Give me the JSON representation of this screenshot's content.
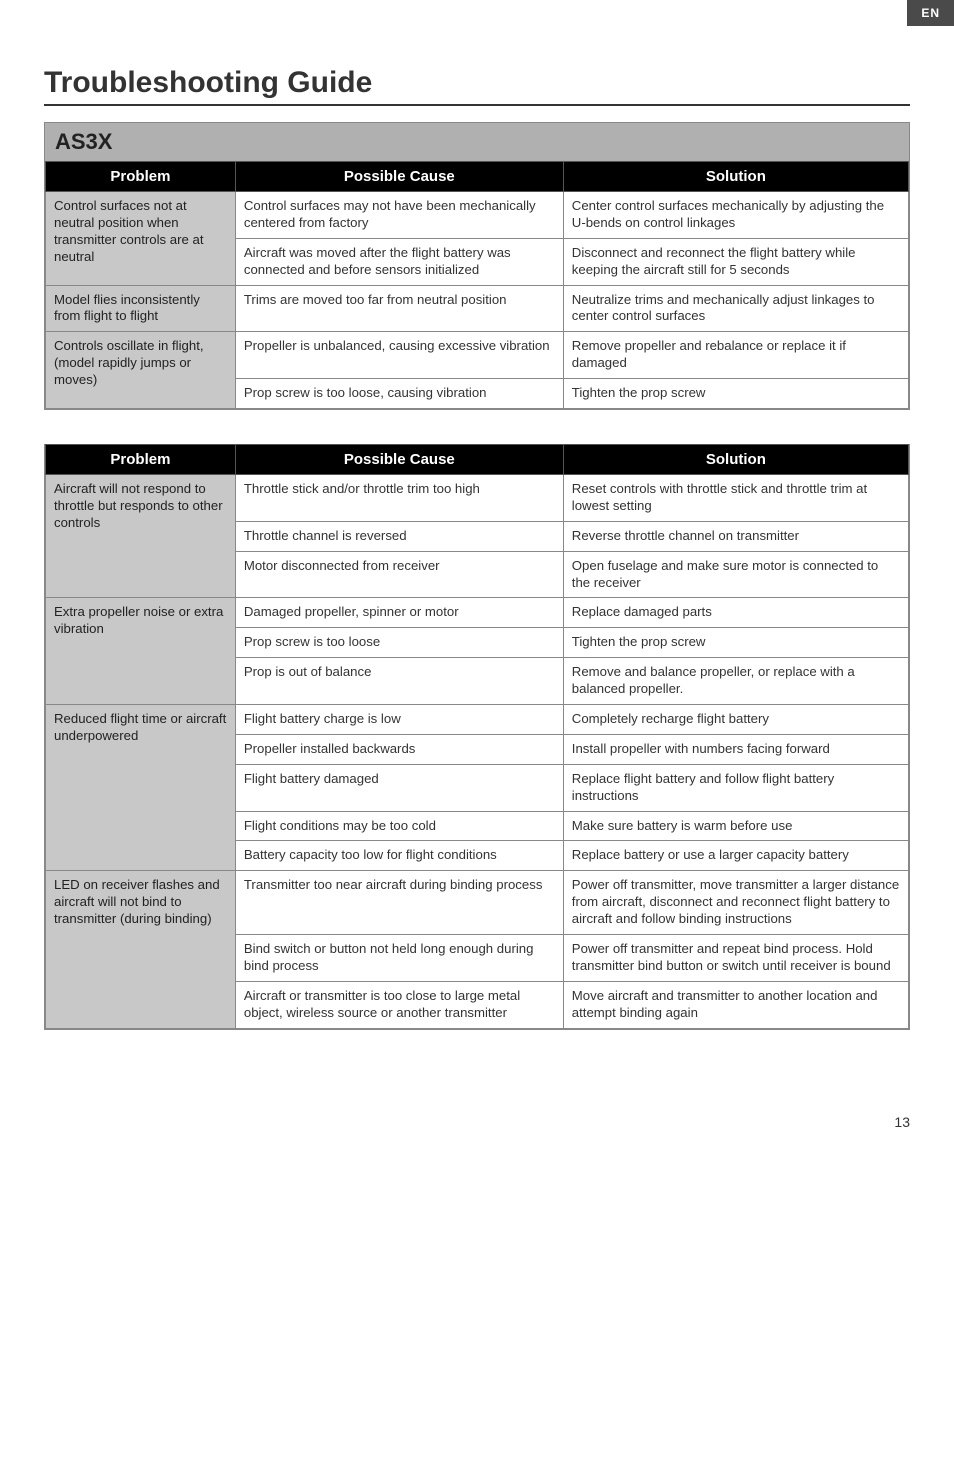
{
  "lang_badge": "EN",
  "page_title": "Troubleshooting Guide",
  "section1_label": "AS3X",
  "headers": {
    "problem": "Problem",
    "cause": "Possible Cause",
    "solution": "Solution"
  },
  "t1": {
    "r0_problem": "Control surfaces not at neutral position when transmitter controls are at neutral",
    "r0_cause": "Control surfaces may not have been mechanically centered from factory",
    "r0_solution": "Center control surfaces mechanically by adjusting the U-bends on control linkages",
    "r1_cause": "Aircraft was moved after the flight battery was connected and before sensors initialized",
    "r1_solution": "Disconnect and reconnect the flight battery while keeping the aircraft still for 5 seconds",
    "r2_problem": "Model flies inconsistently from flight to flight",
    "r2_cause": "Trims are moved too far from neutral position",
    "r2_solution": "Neutralize trims and mechanically adjust linkages to center control surfaces",
    "r3_problem": "Controls oscillate in flight, (model rapidly jumps or moves)",
    "r3_cause": "Propeller is unbalanced, causing excessive vibration",
    "r3_solution": "Remove propeller and rebalance or replace it if damaged",
    "r4_cause": "Prop screw is too loose, causing vibration",
    "r4_solution": "Tighten the prop screw"
  },
  "t2": {
    "r0_problem": "Aircraft will not respond to throttle but responds to other controls",
    "r0_cause": "Throttle stick and/or throttle trim too high",
    "r0_solution": "Reset controls with throttle stick and throttle trim at lowest setting",
    "r1_cause": "Throttle channel is reversed",
    "r1_solution": "Reverse throttle channel on transmitter",
    "r2_cause": "Motor disconnected from receiver",
    "r2_solution": "Open fuselage and make sure motor is connected to the receiver",
    "r3_problem": "Extra propeller noise or extra vibration",
    "r3_cause": "Damaged propeller, spinner or motor",
    "r3_solution": "Replace damaged parts",
    "r4_cause": "Prop screw is too loose",
    "r4_solution": "Tighten the prop screw",
    "r5_cause": "Prop is out of balance",
    "r5_solution": "Remove and balance propeller, or replace with a balanced propeller.",
    "r6_problem": "Reduced flight time or aircraft underpowered",
    "r6_cause": "Flight battery charge is low",
    "r6_solution": "Completely recharge flight battery",
    "r7_cause": "Propeller installed backwards",
    "r7_solution": "Install propeller with numbers facing forward",
    "r8_cause": "Flight battery damaged",
    "r8_solution": "Replace flight battery and follow flight battery instructions",
    "r9_cause": "Flight conditions may be too cold",
    "r9_solution": "Make sure battery is warm before use",
    "r10_cause": "Battery capacity too low for flight conditions",
    "r10_solution": "Replace battery or use a larger capacity battery",
    "r11_problem": "LED on receiver flashes and aircraft will not bind to transmitter (during binding)",
    "r11_cause": "Transmitter too near aircraft during binding process",
    "r11_solution": "Power off transmitter, move transmitter a larger distance from aircraft, disconnect and reconnect flight battery to aircraft and follow binding instructions",
    "r12_cause": "Bind switch or button not held long enough during bind process",
    "r12_solution": "Power off transmitter and repeat bind process. Hold transmitter bind button or switch until receiver is bound",
    "r13_cause": "Aircraft or transmitter is too close to large metal object, wireless source or another transmitter",
    "r13_solution": "Move aircraft and transmitter to another location and attempt binding again"
  },
  "page_number": "13",
  "style": {
    "badge_bg": "#4a4a4a",
    "section_bg": "#b0b0b0",
    "header_bg": "#000000",
    "problem_cell_bg": "#c8c8c8",
    "border": "#888888",
    "text": "#333333"
  }
}
